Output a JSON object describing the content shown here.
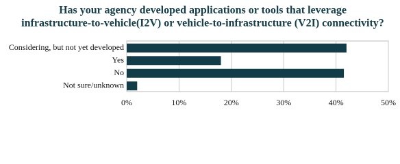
{
  "chart_data": {
    "type": "hbar",
    "title": [
      "Has your agency developed applications or tools that leverage",
      "infrastructure-to-vehicle(I2V) or vehicle-to-infrastructure (V2I) connectivity?"
    ],
    "categories": [
      "Considering, but not yet developed",
      "Yes",
      "No",
      "Not sure/unknown"
    ],
    "values": [
      42,
      18,
      41.5,
      2
    ],
    "color": "#113c48",
    "xlim": [
      0,
      50
    ],
    "xticks": [
      {
        "value": 0,
        "label": "0%"
      },
      {
        "value": 10,
        "label": "10%"
      },
      {
        "value": 20,
        "label": "20%"
      },
      {
        "value": 30,
        "label": "30%"
      },
      {
        "value": 40,
        "label": "40%"
      },
      {
        "value": 50,
        "label": "50%"
      }
    ],
    "grid": true
  }
}
